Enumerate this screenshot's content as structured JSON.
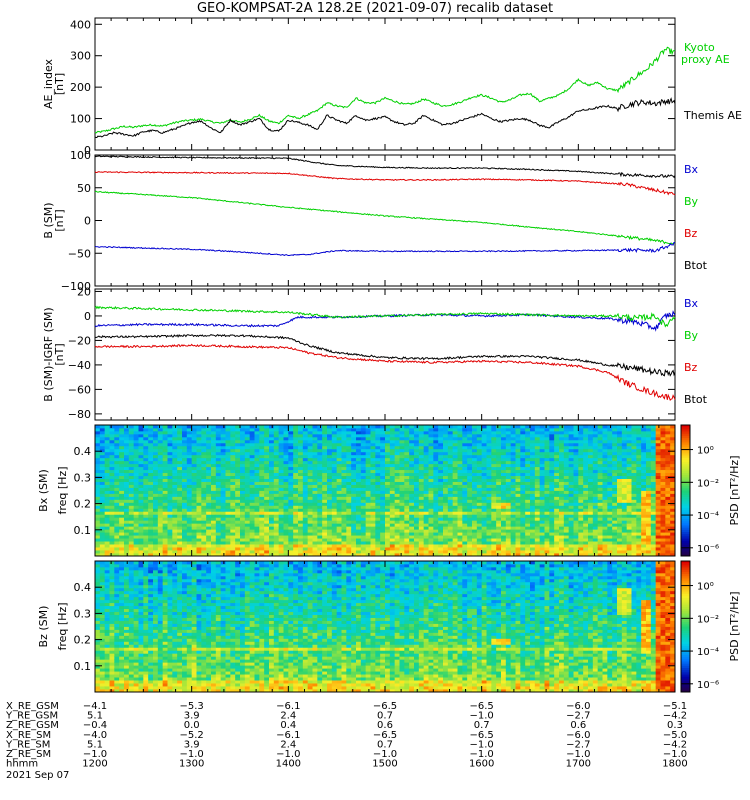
{
  "title": "GEO-KOMPSAT-2A 128.2E (2021-09-07) recalib dataset",
  "date_label": "2021 Sep 07",
  "colorbar_label": "PSD [nT²/Hz]",
  "colorbar_ticks": [
    "10⁰",
    "10⁻²",
    "10⁻⁴",
    "10⁻⁶"
  ],
  "colors": {
    "black": "#000000",
    "red": "#e00000",
    "green": "#00d000",
    "blue": "#0000d0"
  },
  "ephemeris": {
    "row_labels": [
      "X_RE_GSM",
      "Y_RE_GSM",
      "Z_RE_GSM",
      "X_RE_SM",
      "Y_RE_SM",
      "Z_RE_SM",
      "hhmm"
    ],
    "columns": [
      [
        "-4.1",
        "5.1",
        "-0.4",
        "-4.0",
        "5.1",
        "-1.0",
        "1200"
      ],
      [
        "-5.3",
        "3.9",
        "0.0",
        "-5.2",
        "3.9",
        "-1.0",
        "1300"
      ],
      [
        "-6.1",
        "2.4",
        "0.4",
        "-6.1",
        "2.4",
        "-1.0",
        "1400"
      ],
      [
        "-6.5",
        "0.7",
        "0.6",
        "-6.5",
        "0.7",
        "-1.0",
        "1500"
      ],
      [
        "-6.5",
        "-1.0",
        "0.7",
        "-6.5",
        "-1.0",
        "-1.0",
        "1600"
      ],
      [
        "-6.0",
        "-2.7",
        "0.6",
        "-6.0",
        "-2.7",
        "-1.0",
        "1700"
      ],
      [
        "-5.1",
        "-4.2",
        "0.3",
        "-5.0",
        "-4.2",
        "-1.0",
        "1800"
      ]
    ]
  },
  "chart_data": [
    {
      "type": "line",
      "panel": "ae",
      "ylabel": "AE_index [nT]",
      "ylim": [
        0,
        420
      ],
      "yticks": [
        0,
        100,
        200,
        300,
        400
      ],
      "xlim": [
        1200,
        1800
      ],
      "series": [
        {
          "name": "Kyoto proxy AE",
          "color": "green",
          "label_lines": [
            "Kyoto",
            "proxy AE"
          ],
          "x": [
            1200,
            1210,
            1220,
            1230,
            1240,
            1250,
            1260,
            1270,
            1280,
            1290,
            1300,
            1310,
            1320,
            1330,
            1340,
            1350,
            1360,
            1370,
            1380,
            1390,
            1400,
            1410,
            1420,
            1430,
            1440,
            1450,
            1460,
            1470,
            1480,
            1490,
            1500,
            1510,
            1520,
            1530,
            1540,
            1550,
            1560,
            1570,
            1580,
            1590,
            1600,
            1610,
            1620,
            1630,
            1640,
            1650,
            1660,
            1670,
            1680,
            1690,
            1700,
            1710,
            1720,
            1730,
            1740,
            1750,
            1760,
            1770,
            1780,
            1790,
            1800
          ],
          "y": [
            55,
            60,
            68,
            75,
            72,
            78,
            80,
            76,
            85,
            92,
            95,
            98,
            90,
            85,
            96,
            88,
            98,
            110,
            92,
            85,
            110,
            100,
            112,
            125,
            150,
            140,
            135,
            165,
            150,
            150,
            165,
            155,
            145,
            148,
            162,
            150,
            140,
            145,
            155,
            168,
            175,
            165,
            152,
            160,
            175,
            180,
            155,
            165,
            175,
            195,
            225,
            205,
            215,
            195,
            190,
            210,
            235,
            255,
            285,
            320,
            310
          ]
        },
        {
          "name": "Themis AE",
          "color": "black",
          "label_lines": [
            "Themis AE"
          ],
          "x": [
            1200,
            1210,
            1220,
            1230,
            1240,
            1250,
            1260,
            1270,
            1280,
            1290,
            1300,
            1310,
            1320,
            1330,
            1340,
            1350,
            1360,
            1370,
            1380,
            1390,
            1400,
            1410,
            1420,
            1430,
            1440,
            1450,
            1460,
            1470,
            1480,
            1490,
            1500,
            1510,
            1520,
            1530,
            1540,
            1550,
            1560,
            1570,
            1580,
            1590,
            1600,
            1610,
            1620,
            1630,
            1640,
            1650,
            1660,
            1670,
            1680,
            1690,
            1700,
            1710,
            1720,
            1730,
            1740,
            1750,
            1760,
            1770,
            1780,
            1790,
            1800
          ],
          "y": [
            40,
            45,
            55,
            50,
            45,
            58,
            62,
            55,
            65,
            75,
            88,
            92,
            70,
            55,
            95,
            80,
            90,
            100,
            65,
            60,
            95,
            88,
            80,
            65,
            110,
            95,
            85,
            110,
            95,
            100,
            105,
            90,
            80,
            85,
            110,
            95,
            80,
            85,
            95,
            105,
            115,
            100,
            90,
            95,
            100,
            95,
            78,
            72,
            90,
            105,
            125,
            128,
            135,
            140,
            132,
            142,
            150,
            152,
            148,
            155,
            155
          ]
        }
      ]
    },
    {
      "type": "line",
      "panel": "b",
      "ylabel": "B (SM) [nT]",
      "ylim": [
        -100,
        100
      ],
      "yticks": [
        -100,
        -50,
        0,
        50,
        100
      ],
      "xlim": [
        1200,
        1800
      ],
      "series": [
        {
          "name": "Btot",
          "color": "black",
          "x": [
            1200,
            1300,
            1400,
            1430,
            1450,
            1500,
            1550,
            1600,
            1650,
            1700,
            1750,
            1800
          ],
          "y": [
            98,
            96,
            95,
            88,
            84,
            81,
            80,
            80,
            78,
            75,
            70,
            67
          ]
        },
        {
          "name": "Bz",
          "color": "red",
          "x": [
            1200,
            1300,
            1400,
            1430,
            1450,
            1500,
            1550,
            1600,
            1650,
            1700,
            1750,
            1800
          ],
          "y": [
            74,
            73,
            72,
            67,
            64,
            62,
            62,
            63,
            62,
            60,
            55,
            40
          ]
        },
        {
          "name": "By",
          "color": "green",
          "x": [
            1200,
            1300,
            1400,
            1500,
            1550,
            1600,
            1650,
            1700,
            1750,
            1800
          ],
          "y": [
            44,
            35,
            20,
            7,
            2,
            -3,
            -10,
            -17,
            -25,
            -35
          ]
        },
        {
          "name": "Bx",
          "color": "blue",
          "x": [
            1200,
            1300,
            1350,
            1400,
            1420,
            1450,
            1500,
            1600,
            1700,
            1750,
            1780,
            1800
          ],
          "y": [
            -40,
            -44,
            -48,
            -53,
            -52,
            -46,
            -47,
            -47,
            -46,
            -45,
            -46,
            -35
          ]
        }
      ]
    },
    {
      "type": "line",
      "panel": "db",
      "ylabel": "B (SM)-IGRF (SM) [nT]",
      "ylim": [
        -85,
        22
      ],
      "yticks": [
        -80,
        -60,
        -40,
        -20,
        0,
        20
      ],
      "xlim": [
        1200,
        1800
      ],
      "series": [
        {
          "name": "Bx",
          "color": "blue",
          "x": [
            1200,
            1250,
            1300,
            1350,
            1390,
            1410,
            1450,
            1500,
            1550,
            1600,
            1650,
            1700,
            1730,
            1760,
            1780,
            1790,
            1800
          ],
          "y": [
            -8,
            -7,
            -7,
            -8,
            -8,
            -1,
            -1,
            0,
            1,
            0,
            1,
            -1,
            -2,
            -5,
            -10,
            0,
            2
          ]
        },
        {
          "name": "By",
          "color": "green",
          "x": [
            1200,
            1250,
            1300,
            1350,
            1400,
            1450,
            1500,
            1550,
            1600,
            1650,
            1700,
            1740,
            1760,
            1780,
            1790,
            1800
          ],
          "y": [
            7,
            6,
            5,
            4,
            3,
            -1,
            0,
            1,
            2,
            1,
            0,
            0,
            -2,
            0,
            -8,
            0
          ]
        },
        {
          "name": "Btot",
          "color": "black",
          "x": [
            1200,
            1250,
            1300,
            1350,
            1400,
            1420,
            1450,
            1500,
            1550,
            1600,
            1650,
            1700,
            1730,
            1760,
            1780,
            1800
          ],
          "y": [
            -17,
            -17,
            -16,
            -16,
            -18,
            -24,
            -30,
            -34,
            -35,
            -33,
            -33,
            -36,
            -40,
            -43,
            -46,
            -47
          ]
        },
        {
          "name": "Bz",
          "color": "red",
          "x": [
            1200,
            1250,
            1300,
            1350,
            1400,
            1420,
            1450,
            1500,
            1550,
            1600,
            1650,
            1700,
            1730,
            1750,
            1770,
            1790,
            1800
          ],
          "y": [
            -25,
            -25,
            -24,
            -25,
            -26,
            -30,
            -34,
            -37,
            -38,
            -37,
            -38,
            -41,
            -46,
            -55,
            -61,
            -66,
            -67
          ]
        }
      ]
    },
    {
      "type": "heatmap",
      "panel": "bx_spec",
      "ylabel": "Bx (SM) freq [Hz]",
      "ylim": [
        0,
        0.5
      ],
      "yticks": [
        0.1,
        0.2,
        0.3,
        0.4
      ],
      "xlim": [
        1200,
        1800
      ],
      "colorbar": {
        "min_exp": -6.5,
        "max_exp": 1.5,
        "ticks": [
          0,
          -2,
          -4,
          -6
        ]
      },
      "tick_labels": [
        "0.1",
        "0.2",
        "0.3",
        "0.4"
      ],
      "features": [
        {
          "x": [
            1780,
            1800
          ],
          "f": [
            0,
            0.5
          ],
          "level": 0.9
        },
        {
          "x": [
            1765,
            1775
          ],
          "f": [
            0.05,
            0.25
          ],
          "level": 0.8
        },
        {
          "x": [
            1740,
            1755
          ],
          "f": [
            0.2,
            0.3
          ],
          "level": 0.7
        },
        {
          "x": [
            1612,
            1628
          ],
          "f": [
            0.18,
            0.21
          ],
          "level": 0.75
        },
        {
          "x": [
            1440,
            1460
          ],
          "f": [
            0.0,
            0.04
          ],
          "level": 0.75
        }
      ]
    },
    {
      "type": "heatmap",
      "panel": "bz_spec",
      "ylabel": "Bz (SM) freq [Hz]",
      "ylim": [
        0,
        0.5
      ],
      "yticks": [
        0.1,
        0.2,
        0.3,
        0.4
      ],
      "xlim": [
        1200,
        1800
      ],
      "colorbar": {
        "min_exp": -6.5,
        "max_exp": 1.5,
        "ticks": [
          0,
          -2,
          -4,
          -6
        ]
      },
      "tick_labels": [
        "0.1",
        "0.2",
        "0.3",
        "0.4"
      ],
      "features": [
        {
          "x": [
            1780,
            1800
          ],
          "f": [
            0,
            0.5
          ],
          "level": 0.9
        },
        {
          "x": [
            1765,
            1775
          ],
          "f": [
            0.15,
            0.35
          ],
          "level": 0.8
        },
        {
          "x": [
            1740,
            1755
          ],
          "f": [
            0.3,
            0.4
          ],
          "level": 0.7
        },
        {
          "x": [
            1612,
            1628
          ],
          "f": [
            0.18,
            0.21
          ],
          "level": 0.75
        },
        {
          "x": [
            1440,
            1460
          ],
          "f": [
            0.0,
            0.04
          ],
          "level": 0.75
        }
      ]
    }
  ]
}
